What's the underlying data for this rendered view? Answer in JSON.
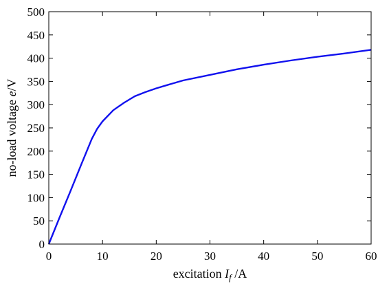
{
  "chart_data": {
    "type": "line",
    "title": "",
    "xlabel_prefix": "excitation ",
    "xlabel_var": "I",
    "xlabel_sub": "f",
    "xlabel_suffix": " /A",
    "ylabel_prefix": "no-load voltage ",
    "ylabel_var": "e",
    "ylabel_suffix": "/V",
    "xlim": [
      0,
      60
    ],
    "ylim": [
      0,
      500
    ],
    "xticks": [
      "0",
      "10",
      "20",
      "30",
      "40",
      "50",
      "60"
    ],
    "yticks": [
      "0",
      "50",
      "100",
      "150",
      "200",
      "250",
      "300",
      "350",
      "400",
      "450",
      "500"
    ],
    "grid": false,
    "series": [
      {
        "color": "#1111ee",
        "x": [
          0,
          2,
          4,
          6,
          8,
          9,
          10,
          12,
          14,
          16,
          18,
          20,
          22,
          25,
          30,
          35,
          40,
          45,
          50,
          55,
          60
        ],
        "y": [
          0,
          57,
          113,
          170,
          226,
          248,
          264,
          288,
          304,
          318,
          327,
          335,
          342,
          352,
          364,
          376,
          386,
          395,
          403,
          410,
          418
        ]
      }
    ]
  }
}
